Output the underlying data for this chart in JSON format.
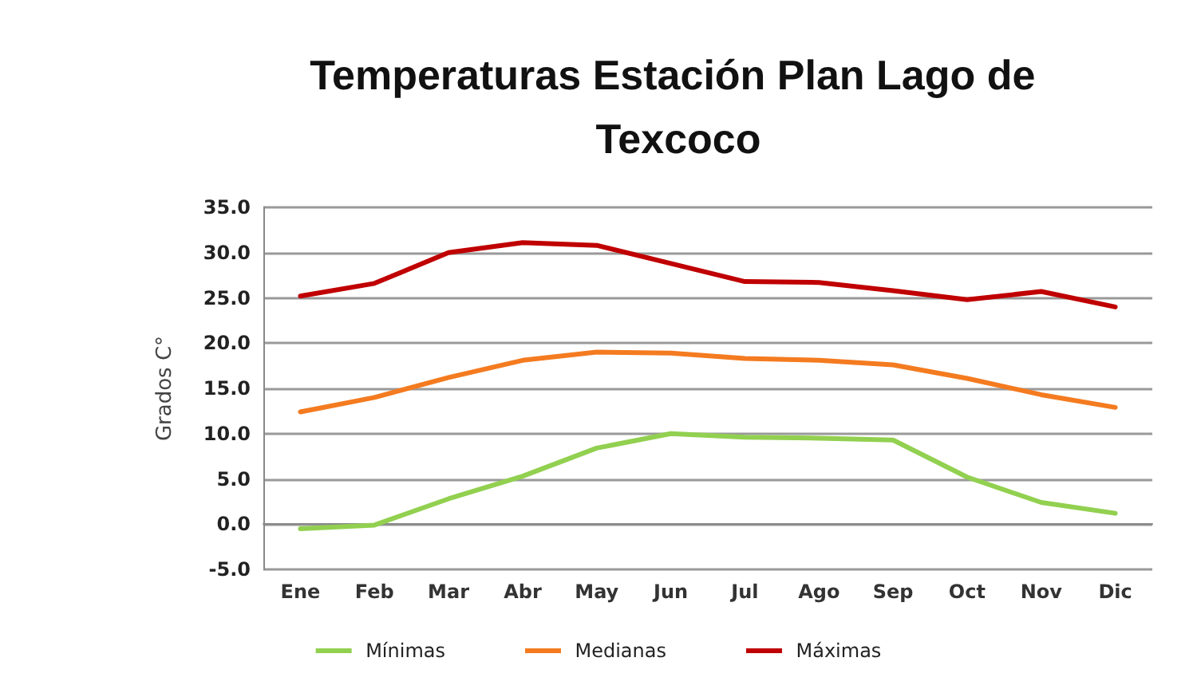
{
  "chart_data": {
    "type": "line",
    "title": "Temperaturas Estación Plan Lago de Texcoco",
    "ylabel": "Grados C°",
    "categories": [
      "Ene",
      "Feb",
      "Mar",
      "Abr",
      "May",
      "Jun",
      "Jul",
      "Ago",
      "Sep",
      "Oct",
      "Nov",
      "Dic"
    ],
    "series": [
      {
        "name": "Mínimas",
        "color": "#92d050",
        "values": [
          -0.5,
          -0.1,
          2.8,
          5.3,
          8.4,
          10.0,
          9.6,
          9.5,
          9.3,
          5.2,
          2.4,
          1.2
        ]
      },
      {
        "name": "Medianas",
        "color": "#f47b20",
        "values": [
          12.4,
          14.0,
          16.2,
          18.1,
          19.0,
          18.9,
          18.3,
          18.1,
          17.6,
          16.1,
          14.3,
          12.9
        ]
      },
      {
        "name": "Máximas",
        "color": "#c00000",
        "values": [
          25.2,
          26.6,
          30.0,
          31.1,
          30.8,
          28.8,
          26.8,
          26.7,
          25.8,
          24.8,
          25.7,
          24.0
        ]
      }
    ],
    "ylim": [
      -5,
      35
    ],
    "yticks": [
      {
        "value": -5,
        "label": "-5.0"
      },
      {
        "value": 0,
        "label": "0.0"
      },
      {
        "value": 5,
        "label": "5.0"
      },
      {
        "value": 10,
        "label": "10.0"
      },
      {
        "value": 15,
        "label": "15.0"
      },
      {
        "value": 20,
        "label": "20.0"
      },
      {
        "value": 25,
        "label": "25.0"
      },
      {
        "value": 30,
        "label": "30.0"
      },
      {
        "value": 35,
        "label": "35.0"
      }
    ],
    "grid": "y",
    "legend": "bottom",
    "marker": "none",
    "line_style": "solid"
  }
}
